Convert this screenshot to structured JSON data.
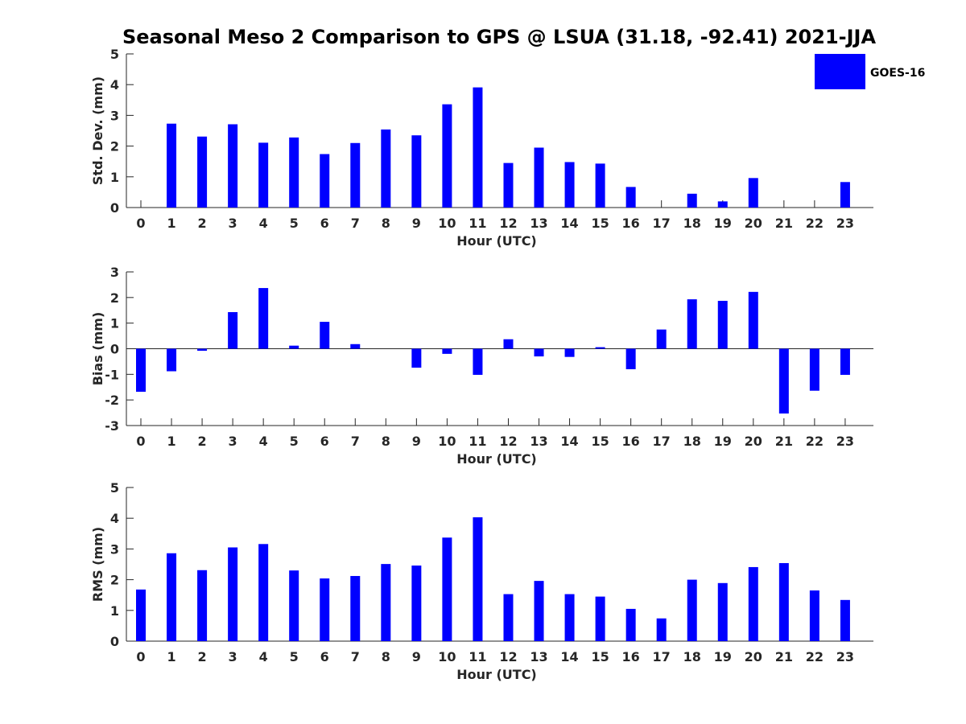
{
  "chart_data": {
    "title": "Seasonal Meso 2 Comparison to GPS @ LSUA (31.18, -92.41) 2021-JJA",
    "legend": {
      "label": "GOES-16",
      "color": "#0000ff",
      "position": "top-right"
    },
    "categories": [
      "0",
      "1",
      "2",
      "3",
      "4",
      "5",
      "6",
      "7",
      "8",
      "9",
      "10",
      "11",
      "12",
      "13",
      "14",
      "15",
      "16",
      "17",
      "18",
      "19",
      "20",
      "21",
      "22",
      "23"
    ],
    "subplots": [
      {
        "type": "bar",
        "series": [
          {
            "name": "GOES-16",
            "values": [
              0,
              2.73,
              2.31,
              2.71,
              2.11,
              2.28,
              1.74,
              2.1,
              2.54,
              2.35,
              3.36,
              3.91,
              1.45,
              1.95,
              1.48,
              1.43,
              0.67,
              0,
              0.45,
              0.2,
              0.96,
              0,
              0,
              0.83
            ]
          }
        ],
        "xlabel": "Hour (UTC)",
        "ylabel": "Std. Dev. (mm)",
        "ylim": [
          0,
          5
        ],
        "yticks": [
          "0",
          "1",
          "2",
          "3",
          "4",
          "5"
        ]
      },
      {
        "type": "bar",
        "series": [
          {
            "name": "GOES-16",
            "values": [
              -1.68,
              -0.88,
              -0.08,
              1.43,
              2.37,
              0.12,
              1.05,
              0.18,
              0,
              -0.74,
              -0.2,
              -1.02,
              0.37,
              -0.3,
              -0.32,
              0.06,
              -0.8,
              0.75,
              1.93,
              1.87,
              2.22,
              -2.53,
              -1.64,
              -1.02
            ]
          }
        ],
        "xlabel": "Hour (UTC)",
        "ylabel": "Bias (mm)",
        "ylim": [
          -3,
          3
        ],
        "yticks": [
          "-3",
          "-2",
          "-1",
          "0",
          "1",
          "2",
          "3"
        ]
      },
      {
        "type": "bar",
        "series": [
          {
            "name": "GOES-16",
            "values": [
              1.68,
              2.86,
              2.31,
              3.05,
              3.16,
              2.3,
              2.04,
              2.12,
              2.51,
              2.46,
              3.37,
              4.03,
              1.53,
              1.96,
              1.53,
              1.45,
              1.05,
              0.74,
              2.0,
              1.89,
              2.41,
              2.54,
              1.65,
              1.34
            ]
          }
        ],
        "xlabel": "Hour (UTC)",
        "ylabel": "RMS (mm)",
        "ylim": [
          0,
          5
        ],
        "yticks": [
          "0",
          "1",
          "2",
          "3",
          "4",
          "5"
        ]
      }
    ]
  }
}
